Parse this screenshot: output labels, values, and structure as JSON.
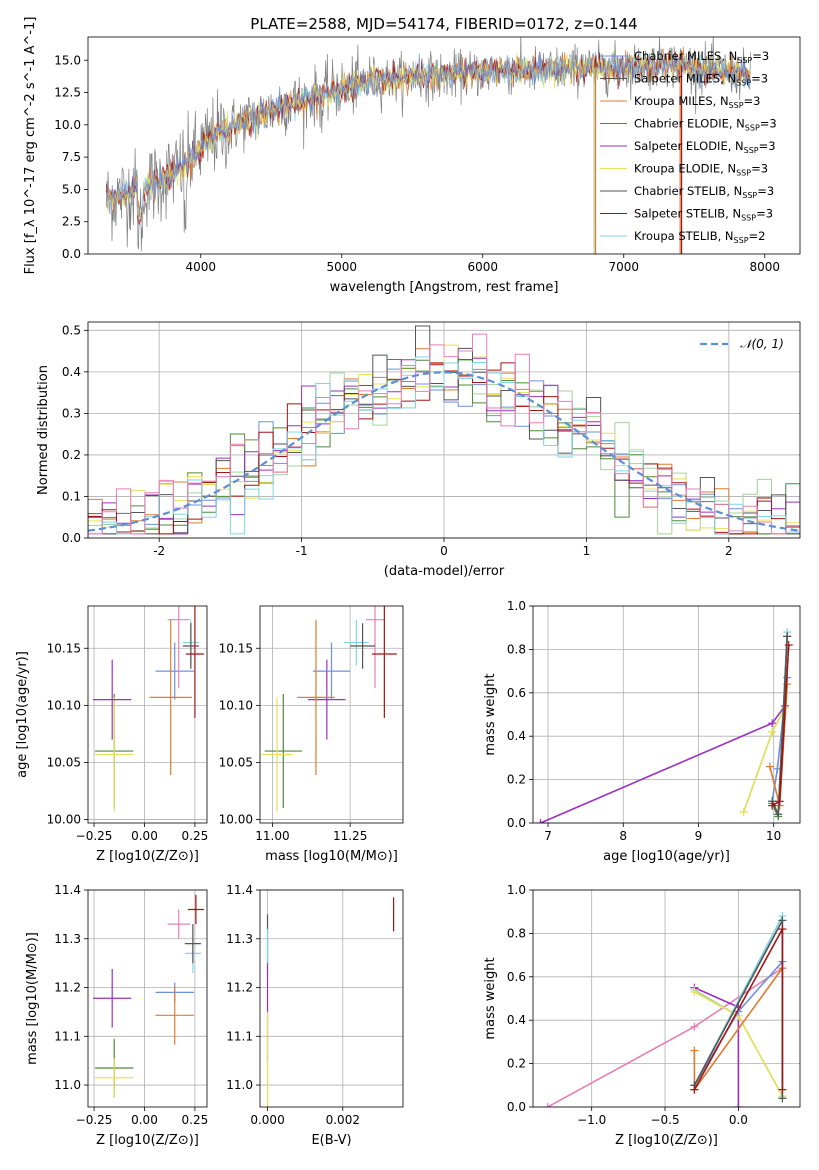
{
  "colors": [
    "#6d8fe0",
    "#e07b2e",
    "#a3d39c",
    "#4e8a3a",
    "#9b30c0",
    "#e8e05a",
    "#555555",
    "#a31515",
    "#7fd5e3",
    "#e87fb8"
  ],
  "chart_data": [
    {
      "id": "spectrum",
      "type": "line",
      "title": "PLATE=2588, MJD=54174, FIBERID=0172, z=0.144",
      "xlabel": "wavelength [Angstrom, rest frame]",
      "ylabel": "Flux [f_λ 10^-17 erg cm^-2 s^-1 A^-1]",
      "xlim": [
        3200,
        8250
      ],
      "ylim": [
        0,
        16.8
      ],
      "xticks": [
        4000,
        5000,
        6000,
        7000,
        8000
      ],
      "yticks": [
        0.0,
        2.5,
        5.0,
        7.5,
        10.0,
        12.5,
        15.0
      ],
      "ytick_labels": [
        "0.0",
        "2.5",
        "5.0",
        "7.5",
        "10.0",
        "12.5",
        "15.0"
      ],
      "legend_position": "upper-right",
      "legend": [
        {
          "label": "Chabrier MILES, N_SSP=3",
          "color": "#6d8fe0"
        },
        {
          "label": "Salpeter MILES, N_SSP=3",
          "color": "#555555"
        },
        {
          "label": "Kroupa MILES, N_SSP=3",
          "color": "#e07b2e"
        },
        {
          "label": "Chabrier ELODIE, N_SSP=3",
          "color": "#4e8a3a"
        },
        {
          "label": "Salpeter ELODIE, N_SSP=3",
          "color": "#9b30c0"
        },
        {
          "label": "Kroupa ELODIE, N_SSP=3",
          "color": "#e8e05a"
        },
        {
          "label": "Chabrier STELIB, N_SSP=3",
          "color": "#555555"
        },
        {
          "label": "Salpeter STELIB, N_SSP=3",
          "color": "#a31515"
        },
        {
          "label": "Kroupa STELIB, N_SSP=2",
          "color": "#7fd5e3"
        }
      ],
      "continuum": [
        [
          3300,
          4.0
        ],
        [
          3500,
          4.8
        ],
        [
          3700,
          5.6
        ],
        [
          3900,
          7.0
        ],
        [
          4100,
          9.2
        ],
        [
          4300,
          10.3
        ],
        [
          4600,
          11.5
        ],
        [
          4900,
          12.5
        ],
        [
          5200,
          13.4
        ],
        [
          5500,
          13.7
        ],
        [
          5800,
          13.8
        ],
        [
          6100,
          14.2
        ],
        [
          6400,
          14.2
        ],
        [
          6700,
          14.4
        ],
        [
          7000,
          14.4
        ],
        [
          7300,
          14.8
        ],
        [
          7600,
          14.3
        ],
        [
          7900,
          13.8
        ]
      ],
      "vertical_spikes": [
        [
          6790,
          "#a3d39c"
        ],
        [
          6800,
          "#e07b2e"
        ],
        [
          7400,
          "#e07b2e"
        ],
        [
          7410,
          "#a31515"
        ]
      ]
    },
    {
      "id": "residuals",
      "type": "histogram",
      "xlabel": "(data-model)/error",
      "ylabel": "Normed distribution",
      "xlim": [
        -2.5,
        2.5
      ],
      "ylim": [
        0,
        0.52
      ],
      "xticks": [
        -2,
        -1,
        0,
        1,
        2
      ],
      "yticks": [
        0.0,
        0.1,
        0.2,
        0.3,
        0.4,
        0.5
      ],
      "ytick_labels": [
        "0.0",
        "0.1",
        "0.2",
        "0.3",
        "0.4",
        "0.5"
      ],
      "legend": [
        {
          "label": "𝒩(0, 1)",
          "color": "#5b8fd6"
        }
      ],
      "bin_width": 0.1
    },
    {
      "id": "age_vs_Z",
      "type": "scatter",
      "xlabel": "Z [log10(Z/Z⊙)]",
      "ylabel": "age  [log10(age/yr)]",
      "xlim": [
        -0.28,
        0.31
      ],
      "ylim": [
        9.997,
        10.187
      ],
      "xticks": [
        -0.25,
        0.0,
        0.25
      ],
      "xtick_labels": [
        "−0.25",
        "0.00",
        "0.25"
      ],
      "yticks": [
        10.0,
        10.05,
        10.1,
        10.15
      ],
      "ytick_labels": [
        "10.00",
        "10.05",
        "10.10",
        "10.15"
      ],
      "points": [
        {
          "x": -0.15,
          "y": 10.06,
          "xerr": 0.095,
          "yerr": 0.05,
          "color": "#4e8a3a"
        },
        {
          "x": -0.15,
          "y": 10.057,
          "xerr": 0.095,
          "yerr": 0.05,
          "color": "#e8e05a"
        },
        {
          "x": -0.16,
          "y": 10.105,
          "xerr": 0.095,
          "yerr": 0.035,
          "color": "#9b30c0"
        },
        {
          "x": 0.15,
          "y": 10.13,
          "xerr": 0.095,
          "yerr": 0.025,
          "color": "#6d8fe0"
        },
        {
          "x": 0.13,
          "y": 10.107,
          "xerr": 0.105,
          "yerr": 0.068,
          "color": "#e07b2e"
        },
        {
          "x": 0.17,
          "y": 10.175,
          "xerr": 0.055,
          "yerr": 0.06,
          "color": "#e87fb8"
        },
        {
          "x": 0.23,
          "y": 10.155,
          "xerr": 0.04,
          "yerr": 0.02,
          "color": "#7fd5e3"
        },
        {
          "x": 0.23,
          "y": 10.152,
          "xerr": 0.04,
          "yerr": 0.02,
          "color": "#555555"
        },
        {
          "x": 0.25,
          "y": 10.145,
          "xerr": 0.045,
          "yerr": 0.056,
          "color": "#a31515"
        }
      ]
    },
    {
      "id": "age_vs_mass",
      "type": "scatter",
      "xlabel": "mass [log10(M/M⊙)]",
      "ylabel": "",
      "xlim": [
        10.96,
        11.42
      ],
      "ylim": [
        9.997,
        10.187
      ],
      "xticks": [
        11.0,
        11.25
      ],
      "xtick_labels": [
        "11.00",
        "11.25"
      ],
      "yticks": [
        10.0,
        10.05,
        10.1,
        10.15
      ],
      "ytick_labels": [
        "10.00",
        "10.05",
        "10.10",
        "10.15"
      ],
      "points": [
        {
          "x": 11.035,
          "y": 10.06,
          "xerr": 0.06,
          "yerr": 0.05,
          "color": "#4e8a3a"
        },
        {
          "x": 11.015,
          "y": 10.057,
          "xerr": 0.05,
          "yerr": 0.05,
          "color": "#e8e05a"
        },
        {
          "x": 11.175,
          "y": 10.105,
          "xerr": 0.06,
          "yerr": 0.035,
          "color": "#9b30c0"
        },
        {
          "x": 11.19,
          "y": 10.13,
          "xerr": 0.06,
          "yerr": 0.025,
          "color": "#6d8fe0"
        },
        {
          "x": 11.14,
          "y": 10.107,
          "xerr": 0.06,
          "yerr": 0.068,
          "color": "#e07b2e"
        },
        {
          "x": 11.33,
          "y": 10.175,
          "xerr": 0.03,
          "yerr": 0.06,
          "color": "#e87fb8"
        },
        {
          "x": 11.27,
          "y": 10.155,
          "xerr": 0.04,
          "yerr": 0.02,
          "color": "#7fd5e3"
        },
        {
          "x": 11.29,
          "y": 10.152,
          "xerr": 0.04,
          "yerr": 0.02,
          "color": "#555555"
        },
        {
          "x": 11.36,
          "y": 10.145,
          "xerr": 0.04,
          "yerr": 0.056,
          "color": "#a31515"
        }
      ]
    },
    {
      "id": "mass_weight_vs_age",
      "type": "line",
      "xlabel": "age  [log10(age/yr)]",
      "ylabel": "mass weight",
      "xlim": [
        6.8,
        10.35
      ],
      "ylim": [
        0,
        1
      ],
      "xticks": [
        7,
        8,
        9,
        10
      ],
      "xtick_labels": [
        "7",
        "8",
        "9",
        "10"
      ],
      "yticks": [
        0,
        0.2,
        0.4,
        0.6,
        0.8,
        1.0
      ],
      "ytick_labels": [
        "0.0",
        "0.2",
        "0.4",
        "0.6",
        "0.8",
        "1.0"
      ],
      "series": [
        {
          "color": "#9b30c0",
          "x": [
            6.9,
            9.98,
            10.15
          ],
          "y": [
            0.0,
            0.46,
            0.54
          ]
        },
        {
          "color": "#6d8fe0",
          "x": [
            9.98,
            10.05,
            10.18
          ],
          "y": [
            0.1,
            0.25,
            0.67
          ]
        },
        {
          "color": "#e07b2e",
          "x": [
            9.95,
            10.08,
            10.18
          ],
          "y": [
            0.26,
            0.08,
            0.64
          ]
        },
        {
          "color": "#a3d39c",
          "x": [
            9.6,
            9.98,
            10.15
          ],
          "y": [
            0.05,
            0.42,
            0.53
          ]
        },
        {
          "color": "#e8e05a",
          "x": [
            9.6,
            9.98,
            10.15
          ],
          "y": [
            0.05,
            0.42,
            0.53
          ]
        },
        {
          "color": "#7fd5e3",
          "x": [
            9.98,
            10.06,
            10.18
          ],
          "y": [
            0.1,
            0.04,
            0.88
          ]
        },
        {
          "color": "#4e8a3a",
          "x": [
            9.98,
            10.06,
            10.18
          ],
          "y": [
            0.09,
            0.03,
            0.86
          ]
        },
        {
          "color": "#555555",
          "x": [
            9.98,
            10.06,
            10.18
          ],
          "y": [
            0.1,
            0.04,
            0.86
          ]
        },
        {
          "color": "#a31515",
          "x": [
            9.98,
            10.08,
            10.2
          ],
          "y": [
            0.08,
            0.1,
            0.82
          ]
        }
      ]
    },
    {
      "id": "mass_vs_Z",
      "type": "scatter",
      "xlabel": "Z [log10(Z/Z⊙)]",
      "ylabel": "mass [log10(M/M⊙)]",
      "xlim": [
        -0.28,
        0.31
      ],
      "ylim": [
        10.955,
        11.4
      ],
      "xticks": [
        -0.25,
        0.0,
        0.25
      ],
      "xtick_labels": [
        "−0.25",
        "0.00",
        "0.25"
      ],
      "yticks": [
        11.0,
        11.1,
        11.2,
        11.3,
        11.4
      ],
      "ytick_labels": [
        "11.0",
        "11.1",
        "11.2",
        "11.3",
        "11.4"
      ],
      "points": [
        {
          "x": -0.16,
          "y": 11.178,
          "xerr": 0.095,
          "yerr": 0.06,
          "color": "#9b30c0"
        },
        {
          "x": -0.15,
          "y": 11.035,
          "xerr": 0.095,
          "yerr": 0.06,
          "color": "#4e8a3a"
        },
        {
          "x": -0.15,
          "y": 11.015,
          "xerr": 0.095,
          "yerr": 0.04,
          "color": "#e8e05a"
        },
        {
          "x": 0.15,
          "y": 11.19,
          "xerr": 0.095,
          "yerr": 0.02,
          "color": "#6d8fe0"
        },
        {
          "x": 0.15,
          "y": 11.143,
          "xerr": 0.095,
          "yerr": 0.06,
          "color": "#e07b2e"
        },
        {
          "x": 0.17,
          "y": 11.33,
          "xerr": 0.055,
          "yerr": 0.03,
          "color": "#e87fb8"
        },
        {
          "x": 0.24,
          "y": 11.27,
          "xerr": 0.04,
          "yerr": 0.04,
          "color": "#7fd5e3"
        },
        {
          "x": 0.24,
          "y": 11.29,
          "xerr": 0.04,
          "yerr": 0.04,
          "color": "#555555"
        },
        {
          "x": 0.255,
          "y": 11.36,
          "xerr": 0.04,
          "yerr": 0.03,
          "color": "#a31515"
        }
      ]
    },
    {
      "id": "mass_vs_ebv",
      "type": "scatter",
      "xlabel": "E(B-V)",
      "ylabel": "",
      "xlim": [
        -0.0002,
        0.0036
      ],
      "ylim": [
        10.955,
        11.4
      ],
      "xticks": [
        0.0,
        0.002
      ],
      "xtick_labels": [
        "0.000",
        "0.002"
      ],
      "yticks": [
        11.0,
        11.1,
        11.2,
        11.3,
        11.4
      ],
      "ytick_labels": [
        "11.0",
        "11.1",
        "11.2",
        "11.3",
        "11.4"
      ],
      "points": [
        {
          "x": 0.0,
          "y": 11.3,
          "xerr": 0,
          "yerr": 0.05,
          "color": "#555555"
        },
        {
          "x": 0.0,
          "y": 11.27,
          "xerr": 0,
          "yerr": 0.05,
          "color": "#7fd5e3"
        },
        {
          "x": 0.0,
          "y": 11.15,
          "xerr": 0,
          "yerr": 0.1,
          "color": "#9b30c0"
        },
        {
          "x": 0.0,
          "y": 11.05,
          "xerr": 0,
          "yerr": 0.1,
          "color": "#e8e05a"
        },
        {
          "x": 0.0,
          "y": 11.0,
          "xerr": 0,
          "yerr": 0.05,
          "color": "#e8e05a"
        },
        {
          "x": 0.00335,
          "y": 11.35,
          "xerr": 0,
          "yerr": 0.035,
          "color": "#a31515"
        }
      ]
    },
    {
      "id": "mass_weight_vs_Z",
      "type": "line",
      "xlabel": "Z [log10(Z/Z⊙)]",
      "ylabel": "mass weight",
      "xlim": [
        -1.4,
        0.42
      ],
      "ylim": [
        0,
        1
      ],
      "xticks": [
        -1.0,
        -0.5,
        0.0
      ],
      "xtick_labels": [
        "−1.0",
        "−0.5",
        "0.0"
      ],
      "yticks": [
        0,
        0.2,
        0.4,
        0.6,
        0.8,
        1.0
      ],
      "ytick_labels": [
        "0.0",
        "0.2",
        "0.4",
        "0.6",
        "0.8",
        "1.0"
      ],
      "series": [
        {
          "color": "#e87fb8",
          "x": [
            -1.3,
            -0.3,
            0.3
          ],
          "y": [
            0.0,
            0.37,
            0.64
          ]
        },
        {
          "color": "#9b30c0",
          "x": [
            -0.3,
            0.0,
            0.0
          ],
          "y": [
            0.55,
            0.46,
            0.0
          ]
        },
        {
          "color": "#a3d39c",
          "x": [
            -0.3,
            0.0,
            0.3
          ],
          "y": [
            0.54,
            0.42,
            0.05
          ]
        },
        {
          "color": "#e8e05a",
          "x": [
            -0.3,
            0.0,
            0.3
          ],
          "y": [
            0.53,
            0.42,
            0.05
          ]
        },
        {
          "color": "#6d8fe0",
          "x": [
            -0.3,
            0.0,
            0.3
          ],
          "y": [
            0.1,
            0.44,
            0.67
          ]
        },
        {
          "color": "#e07b2e",
          "x": [
            -0.3,
            -0.3,
            0.3
          ],
          "y": [
            0.26,
            0.08,
            0.64
          ]
        },
        {
          "color": "#7fd5e3",
          "x": [
            -0.3,
            0.3,
            0.3
          ],
          "y": [
            0.1,
            0.88,
            0.04
          ]
        },
        {
          "color": "#555555",
          "x": [
            -0.3,
            0.3,
            0.3
          ],
          "y": [
            0.1,
            0.86,
            0.04
          ]
        },
        {
          "color": "#a31515",
          "x": [
            -0.3,
            0.3,
            0.3
          ],
          "y": [
            0.08,
            0.82,
            0.08
          ]
        }
      ]
    }
  ]
}
